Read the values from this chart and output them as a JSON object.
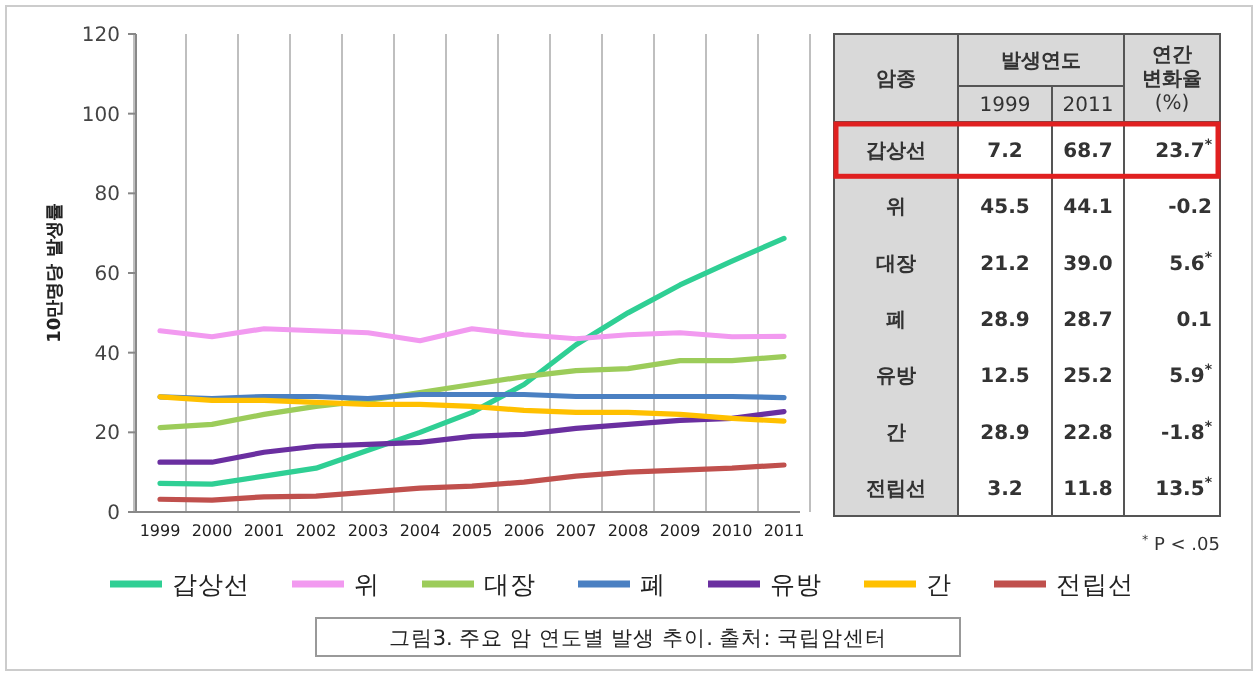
{
  "chart_data": [
    {
      "type": "line",
      "ylabel": "10만명당 발생률",
      "categories": [
        "1999",
        "2000",
        "2001",
        "2002",
        "2003",
        "2004",
        "2005",
        "2006",
        "2007",
        "2008",
        "2009",
        "2010",
        "2011"
      ],
      "ylim": [
        0,
        120
      ],
      "yticks": [
        0,
        20,
        40,
        60,
        80,
        100,
        120
      ],
      "grid": "x",
      "legend": "bottom",
      "line_style": "solid",
      "marker": "none",
      "annotations": [
        "그림3. 주요 암 연도별 발생 추이. 출처: 국립암센터"
      ],
      "series": [
        {
          "name": "갑상선",
          "color": "#2fcf94",
          "values": [
            7.2,
            7,
            9,
            11,
            15.5,
            20,
            25,
            32,
            42,
            50,
            57,
            63,
            68.7
          ]
        },
        {
          "name": "위",
          "color": "#f29af0",
          "values": [
            45.5,
            44,
            46,
            45.5,
            45,
            43,
            46,
            44.5,
            43.5,
            44.5,
            45,
            44,
            44.1
          ]
        },
        {
          "name": "대장",
          "color": "#9ccc5a",
          "values": [
            21.2,
            22,
            24.5,
            26.5,
            28,
            30,
            32,
            34,
            35.5,
            36,
            38,
            38,
            39.0
          ]
        },
        {
          "name": "폐",
          "color": "#4a80c2",
          "values": [
            28.9,
            28.5,
            29,
            29,
            28.5,
            29.5,
            29.5,
            29.5,
            29,
            29,
            29,
            29,
            28.7
          ]
        },
        {
          "name": "유방",
          "color": "#6a2fa0",
          "values": [
            12.5,
            12.5,
            15,
            16.5,
            17,
            17.5,
            19,
            19.5,
            21,
            22,
            23,
            23.5,
            25.2
          ]
        },
        {
          "name": "간",
          "color": "#ffc000",
          "values": [
            28.9,
            28,
            28,
            27.5,
            27,
            27,
            26.5,
            25.5,
            25,
            25,
            24.5,
            23.5,
            22.8
          ]
        },
        {
          "name": "전립선",
          "color": "#c0504d",
          "values": [
            3.2,
            3,
            3.8,
            4,
            5,
            6,
            6.5,
            7.5,
            9,
            10,
            10.5,
            11,
            11.8
          ]
        }
      ]
    },
    {
      "type": "other",
      "categories": [
        "갑상선",
        "위",
        "대장",
        "폐",
        "유방",
        "간",
        "전립선"
      ],
      "annotations": [
        "암종",
        "발생연도",
        "$^{*}$ P < .05"
      ],
      "series": [
        {
          "name": "1999",
          "values": [
            7.2,
            45.5,
            21.2,
            28.9,
            12.5,
            28.9,
            3.2
          ],
          "value_labels": [
            "7.2",
            "45.5",
            "21.2",
            "28.9",
            "12.5",
            "28.9",
            "3.2"
          ]
        },
        {
          "name": "2011",
          "values": [
            68.7,
            44.1,
            39.0,
            28.7,
            25.2,
            22.8,
            11.8
          ],
          "value_labels": [
            "68.7",
            "44.1",
            "39.0",
            "28.7",
            "25.2",
            "22.8",
            "11.8"
          ]
        },
        {
          "name": "연간 변화율 (%)",
          "values": [
            23.7,
            -0.2,
            5.6,
            0.1,
            5.9,
            -1.8,
            13.5
          ],
          "value_labels": [
            "23.7$^{*}$",
            "-0.2",
            "5.6$^{*}$",
            "0.1",
            "5.9$^{*}$",
            "-1.8$^{*}$",
            "13.5$^{*}$"
          ]
        }
      ]
    }
  ]
}
